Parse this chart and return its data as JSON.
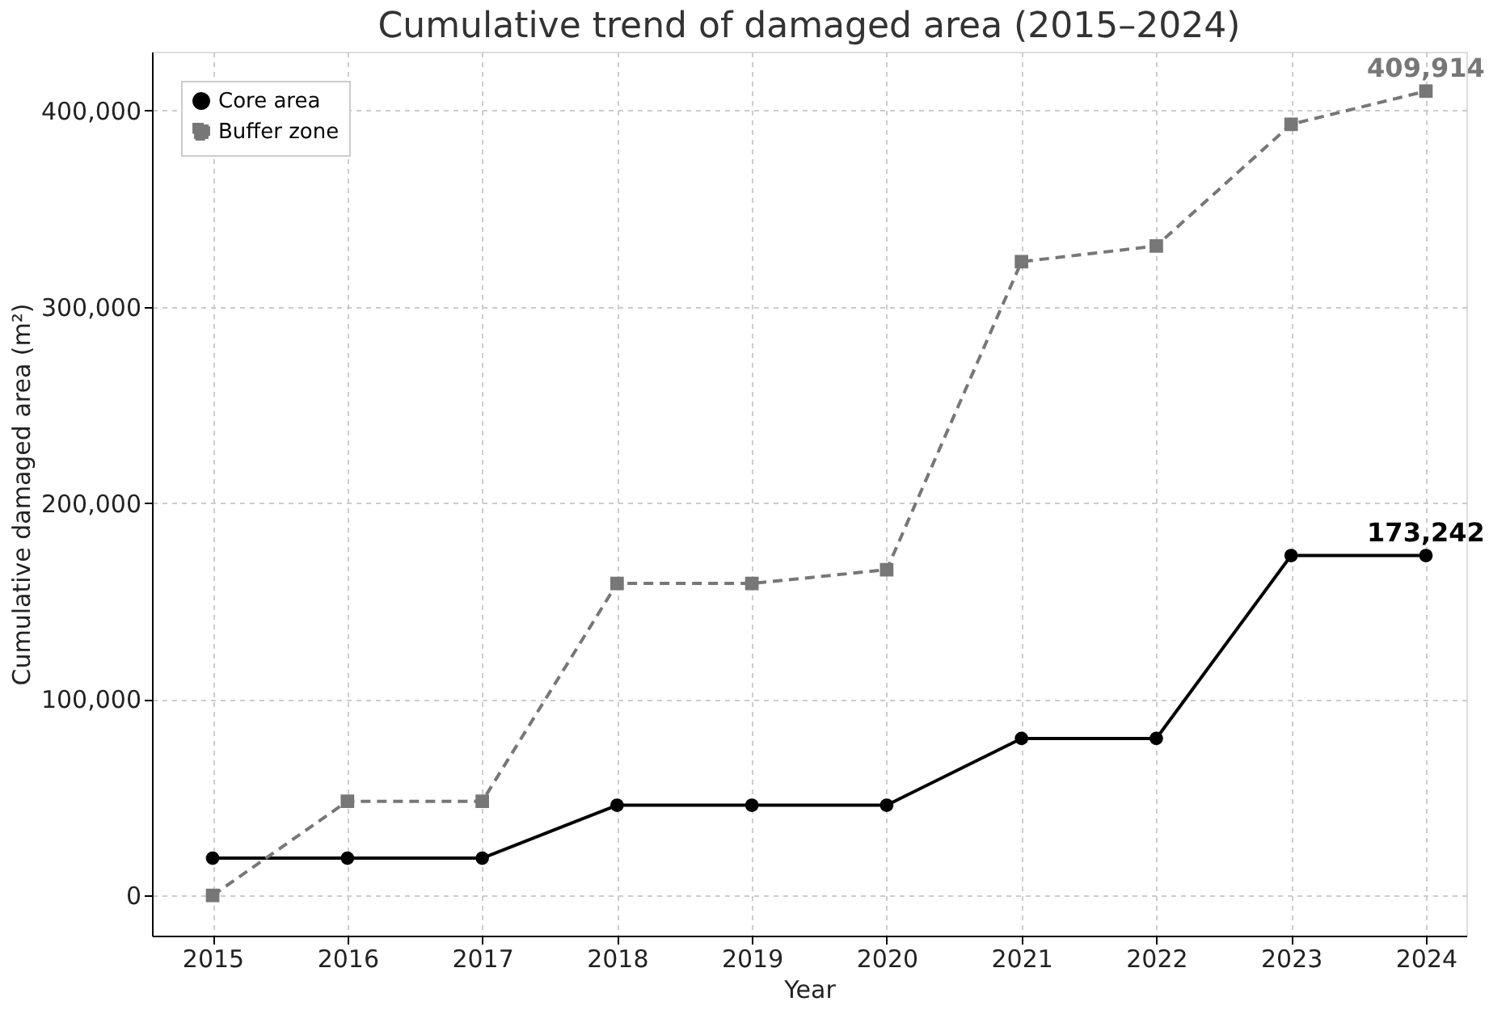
{
  "chart_data": {
    "type": "line",
    "title": "Cumulative trend of damaged area (2015–2024)",
    "xlabel": "Year",
    "ylabel": "Cumulative damaged area (m²)",
    "x": [
      2015,
      2016,
      2017,
      2018,
      2019,
      2020,
      2021,
      2022,
      2023,
      2024
    ],
    "series": [
      {
        "name": "Core area",
        "color": "#000000",
        "marker": "circle",
        "line_style": "solid",
        "values": [
          19000,
          19000,
          19000,
          46000,
          46000,
          46000,
          80000,
          80000,
          173242,
          173242
        ]
      },
      {
        "name": "Buffer zone",
        "color": "#777777",
        "marker": "square",
        "line_style": "dashed",
        "values": [
          0,
          48000,
          48000,
          159000,
          159000,
          166000,
          323000,
          331000,
          393000,
          409914
        ]
      }
    ],
    "annotations": [
      {
        "text": "409,914",
        "x": 2024,
        "y": 409914
      },
      {
        "text": "173,242",
        "x": 2024,
        "y": 173242
      }
    ],
    "xlim": [
      2014.55,
      2024.3
    ],
    "xticks": [
      2015,
      2016,
      2017,
      2018,
      2019,
      2020,
      2021,
      2022,
      2023,
      2024
    ],
    "ylim": [
      -20500,
      430000
    ],
    "yticks": [
      {
        "value": 0,
        "label": "0"
      },
      {
        "value": 100000,
        "label": "100,000"
      },
      {
        "value": 200000,
        "label": "200,000"
      },
      {
        "value": 300000,
        "label": "300,000"
      },
      {
        "value": 400000,
        "label": "400,000"
      }
    ],
    "grid": true,
    "legend": "top left"
  }
}
